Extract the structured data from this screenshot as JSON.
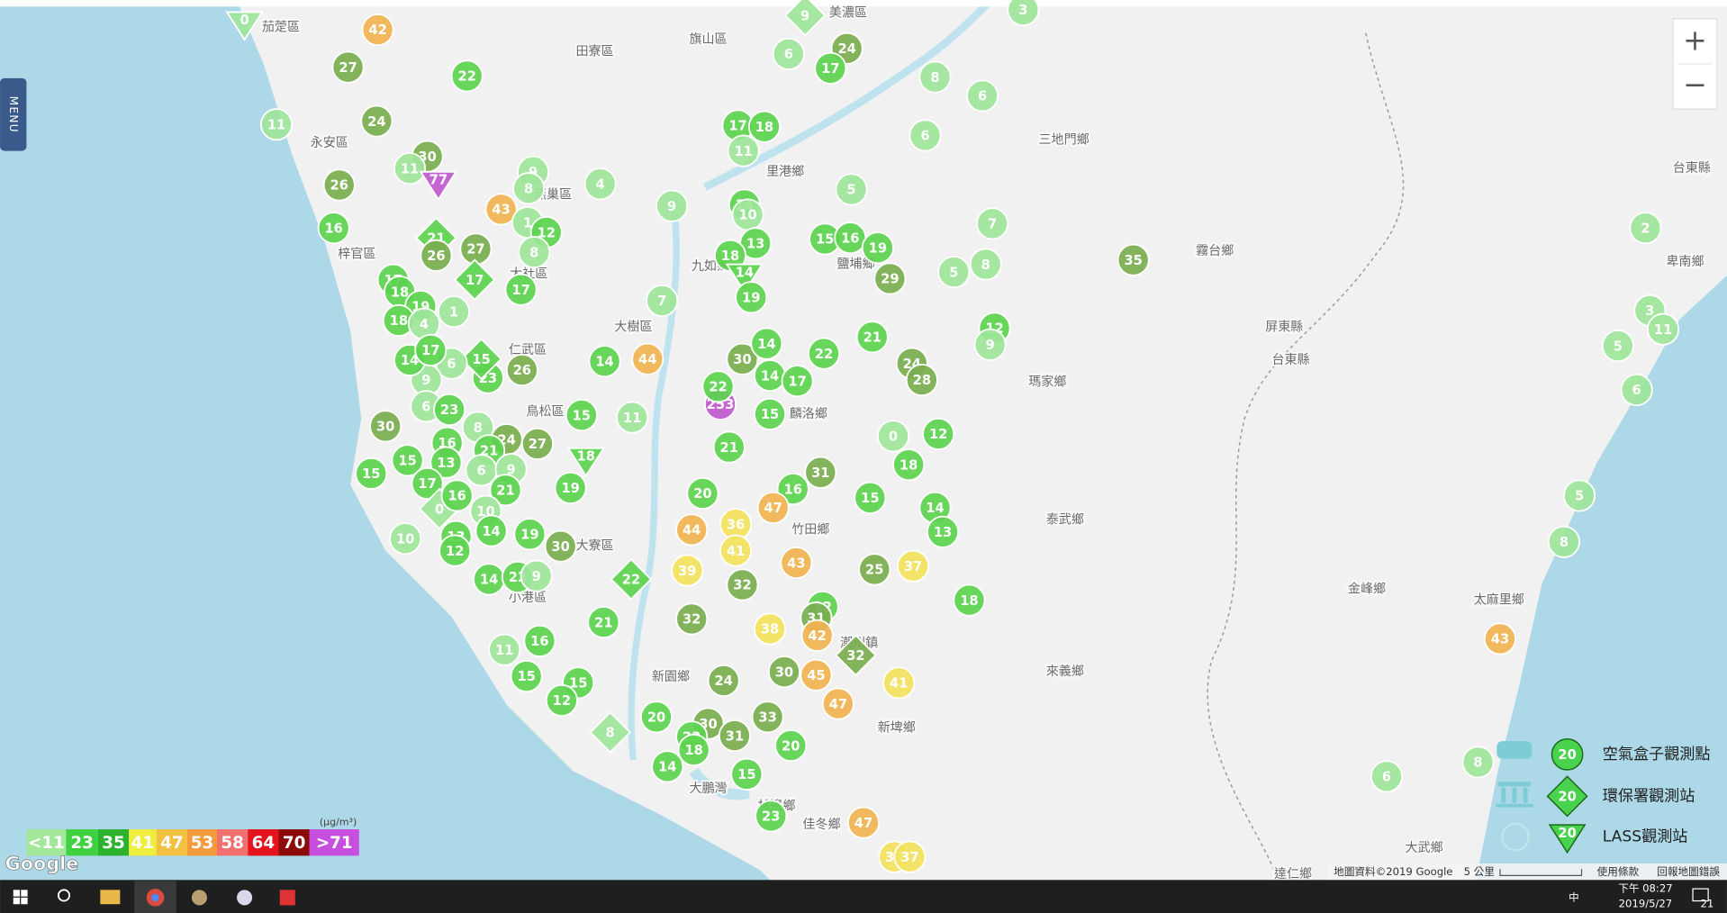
{
  "app": {
    "menu": "MENU",
    "zoom_in": "+",
    "zoom_out": "−"
  },
  "place_labels": [
    "茄萣區",
    "田寮區",
    "旗山區",
    "美濃區",
    "永安區",
    "燕巢區",
    "里港鄉",
    "三地門鄉",
    "梓官區",
    "大社區",
    "九如鄉",
    "鹽埔鄉",
    "霧台鄉",
    "屏東縣",
    "台東縣",
    "台東縣",
    "卑南鄉",
    "大樹區",
    "瑪家鄉",
    "仁武區",
    "鳥松區",
    "麟洛鄉",
    "泰武鄉",
    "竹田鄉",
    "大寮區",
    "小港區",
    "金峰鄉",
    "太麻里鄉",
    "新園鄉",
    "來義鄉",
    "新埤鄉",
    "林邊鄉",
    "佳冬鄉",
    "大武鄉",
    "達仁鄉",
    "潮州鎮",
    "大鵬灣"
  ],
  "markers": {
    "values": [
      0,
      42,
      27,
      22,
      11,
      24,
      30,
      11,
      77,
      26,
      9,
      8,
      4,
      43,
      16,
      1,
      12,
      21,
      27,
      26,
      8,
      17,
      17,
      18,
      17,
      19,
      1,
      18,
      4,
      7,
      14,
      44,
      26,
      23,
      15,
      6,
      9,
      14,
      17,
      253,
      22,
      30,
      14,
      14,
      17,
      22,
      21,
      24,
      28,
      15,
      15,
      11,
      30,
      6,
      23,
      8,
      16,
      24,
      27,
      21,
      18,
      15,
      15,
      13,
      6,
      9,
      17,
      21,
      19,
      21,
      0,
      12,
      18,
      31,
      16,
      20,
      0,
      16,
      10,
      47,
      15,
      14,
      10,
      13,
      14,
      19,
      30,
      12,
      44,
      36,
      41,
      13,
      43,
      39,
      25,
      37,
      14,
      23,
      9,
      22,
      32,
      18,
      12,
      32,
      21,
      38,
      31,
      42,
      16,
      11,
      32,
      15,
      15,
      24,
      30,
      45,
      41,
      12,
      47,
      20,
      30,
      33,
      31,
      8,
      23,
      18,
      20,
      14,
      15,
      23,
      47,
      33,
      37,
      9,
      24,
      6,
      17,
      8,
      6,
      6,
      17,
      18,
      11,
      5,
      9,
      14,
      10,
      13,
      15,
      16,
      19,
      7,
      18,
      14,
      19,
      29,
      5,
      8,
      35,
      12,
      9,
      3,
      2,
      3,
      11,
      5,
      6,
      5,
      8,
      43,
      8,
      6
    ],
    "colors": [
      "#9ee59a",
      "#f2b350",
      "#7aae4e",
      "#5cd24e",
      "#9ee59a",
      "#7aae4e",
      "#7aae4e",
      "#9ee59a",
      "#c159cf",
      "#7aae4e",
      "#9ee59a",
      "#9ee59a",
      "#9ee59a",
      "#f2b350",
      "#5cd24e",
      "#9ee59a",
      "#5cd24e",
      "#5cd24e",
      "#7aae4e",
      "#7aae4e",
      "#9ee59a",
      "#5cd24e",
      "#5cd24e",
      "#5cd24e",
      "#5cd24e",
      "#5cd24e",
      "#9ee59a",
      "#5cd24e",
      "#9ee59a",
      "#9ee59a",
      "#5cd24e",
      "#f2b350",
      "#7aae4e",
      "#5cd24e",
      "#5cd24e",
      "#9ee59a",
      "#9ee59a",
      "#5cd24e",
      "#5cd24e",
      "#c159cf",
      "#5cd24e",
      "#7aae4e",
      "#5cd24e",
      "#5cd24e",
      "#5cd24e",
      "#5cd24e",
      "#5cd24e",
      "#7aae4e",
      "#7aae4e",
      "#5cd24e",
      "#5cd24e",
      "#9ee59a",
      "#7aae4e",
      "#9ee59a",
      "#5cd24e",
      "#9ee59a",
      "#5cd24e",
      "#7aae4e",
      "#7aae4e",
      "#5cd24e",
      "#5cd24e",
      "#5cd24e",
      "#5cd24e",
      "#5cd24e",
      "#9ee59a",
      "#9ee59a",
      "#5cd24e",
      "#5cd24e",
      "#5cd24e",
      "#5cd24e",
      "#9ee59a",
      "#5cd24e",
      "#5cd24e",
      "#7aae4e",
      "#5cd24e",
      "#5cd24e",
      "#9ee59a",
      "#5cd24e",
      "#9ee59a",
      "#f2b350",
      "#5cd24e",
      "#5cd24e",
      "#9ee59a",
      "#5cd24e",
      "#5cd24e",
      "#5cd24e",
      "#7aae4e",
      "#5cd24e",
      "#f2b350",
      "#f3e25c",
      "#f3e25c",
      "#5cd24e",
      "#f2b350",
      "#f3e25c",
      "#7aae4e",
      "#f3e25c",
      "#5cd24e",
      "#5cd24e",
      "#9ee59a",
      "#5cd24e",
      "#7aae4e",
      "#5cd24e",
      "#5cd24e",
      "#7aae4e",
      "#5cd24e",
      "#f3e25c",
      "#7aae4e",
      "#f2b350",
      "#5cd24e",
      "#9ee59a",
      "#7aae4e",
      "#5cd24e",
      "#5cd24e",
      "#7aae4e",
      "#7aae4e",
      "#f2b350",
      "#f3e25c",
      "#5cd24e",
      "#f2b350",
      "#5cd24e",
      "#7aae4e",
      "#7aae4e",
      "#7aae4e",
      "#9ee59a",
      "#5cd24e",
      "#5cd24e",
      "#5cd24e",
      "#5cd24e",
      "#5cd24e",
      "#5cd24e",
      "#f2b350",
      "#f3e25c",
      "#f3e25c",
      "#9ee59a",
      "#7aae4e",
      "#9ee59a",
      "#5cd24e",
      "#9ee59a",
      "#9ee59a",
      "#9ee59a",
      "#5cd24e",
      "#5cd24e",
      "#9ee59a",
      "#9ee59a",
      "#9ee59a",
      "#5cd24e",
      "#9ee59a",
      "#5cd24e",
      "#5cd24e",
      "#5cd24e",
      "#5cd24e",
      "#9ee59a",
      "#5cd24e",
      "#5cd24e",
      "#5cd24e",
      "#7aae4e",
      "#9ee59a",
      "#9ee59a",
      "#7aae4e",
      "#5cd24e",
      "#9ee59a",
      "#9ee59a",
      "#9ee59a",
      "#9ee59a",
      "#9ee59a",
      "#9ee59a",
      "#9ee59a",
      "#9ee59a",
      "#9ee59a",
      "#f2b350",
      "#9ee59a",
      "#9ee59a"
    ],
    "shapes": [
      "triangle",
      "circle",
      "circle",
      "circle",
      "circle",
      "circle",
      "circle",
      "circle",
      "triangle",
      "circle",
      "circle",
      "circle",
      "circle",
      "circle",
      "circle",
      "circle",
      "circle",
      "diamond",
      "circle",
      "circle",
      "circle",
      "diamond",
      "circle",
      "circle",
      "circle",
      "circle",
      "circle",
      "circle",
      "circle",
      "circle",
      "circle",
      "circle",
      "circle",
      "circle",
      "diamond",
      "circle",
      "circle",
      "circle",
      "circle",
      "circle",
      "circle",
      "circle",
      "circle",
      "circle",
      "circle",
      "circle",
      "circle",
      "circle",
      "circle",
      "circle",
      "circle",
      "circle",
      "circle",
      "circle",
      "circle",
      "circle",
      "circle",
      "circle",
      "circle",
      "circle",
      "triangle",
      "circle",
      "circle",
      "circle",
      "circle",
      "circle",
      "circle",
      "circle",
      "circle",
      "circle",
      "circle",
      "circle",
      "circle",
      "circle",
      "circle",
      "circle",
      "diamond",
      "circle",
      "circle",
      "circle",
      "circle",
      "circle",
      "circle",
      "circle",
      "circle",
      "circle",
      "circle",
      "circle",
      "circle",
      "circle",
      "circle",
      "circle",
      "circle",
      "circle",
      "circle",
      "circle",
      "circle",
      "circle",
      "circle",
      "diamond",
      "circle",
      "circle",
      "circle",
      "circle",
      "circle",
      "circle",
      "circle",
      "circle",
      "circle",
      "circle",
      "diamond",
      "circle",
      "circle",
      "circle",
      "circle",
      "circle",
      "circle",
      "circle",
      "circle",
      "circle",
      "circle",
      "circle",
      "circle",
      "diamond",
      "circle",
      "circle",
      "circle",
      "circle",
      "circle",
      "circle",
      "circle",
      "circle",
      "circle",
      "diamond",
      "circle",
      "circle",
      "circle",
      "circle",
      "circle",
      "circle",
      "circle",
      "circle",
      "circle",
      "circle",
      "circle",
      "circle",
      "circle",
      "circle",
      "circle",
      "circle",
      "circle",
      "circle",
      "circle",
      "triangle",
      "circle",
      "circle",
      "circle",
      "circle",
      "circle",
      "circle",
      "circle",
      "circle",
      "circle",
      "circle",
      "circle",
      "circle",
      "circle",
      "circle",
      "circle",
      "circle",
      "circle",
      "circle"
    ]
  },
  "legend": {
    "unit": "(μg/m³)",
    "scale": [
      {
        "label": "<11",
        "color": "#a3e89a"
      },
      {
        "label": "23",
        "color": "#3fd13f"
      },
      {
        "label": "35",
        "color": "#2db22d"
      },
      {
        "label": "41",
        "color": "#f0ee3c"
      },
      {
        "label": "47",
        "color": "#f4c042"
      },
      {
        "label": "53",
        "color": "#f29a3c"
      },
      {
        "label": "58",
        "color": "#f07070"
      },
      {
        "label": "64",
        "color": "#e4141e"
      },
      {
        "label": "70",
        "color": "#8c0a0a"
      },
      {
        "label": ">71",
        "color": "#c84ee0"
      }
    ],
    "types": [
      "空氣盒子觀測點",
      "環保署觀測站",
      "LASS觀測站"
    ],
    "sample": "20"
  },
  "map_footer": {
    "logo": "Google",
    "attribution": "地圖資料©2019 Google",
    "scale": "5 公里",
    "terms": "使用條款",
    "report": "回報地圖錯誤"
  },
  "taskbar": {
    "input": "中",
    "time": "下午 08:27",
    "date": "2019/5/27",
    "notifications": "21"
  }
}
